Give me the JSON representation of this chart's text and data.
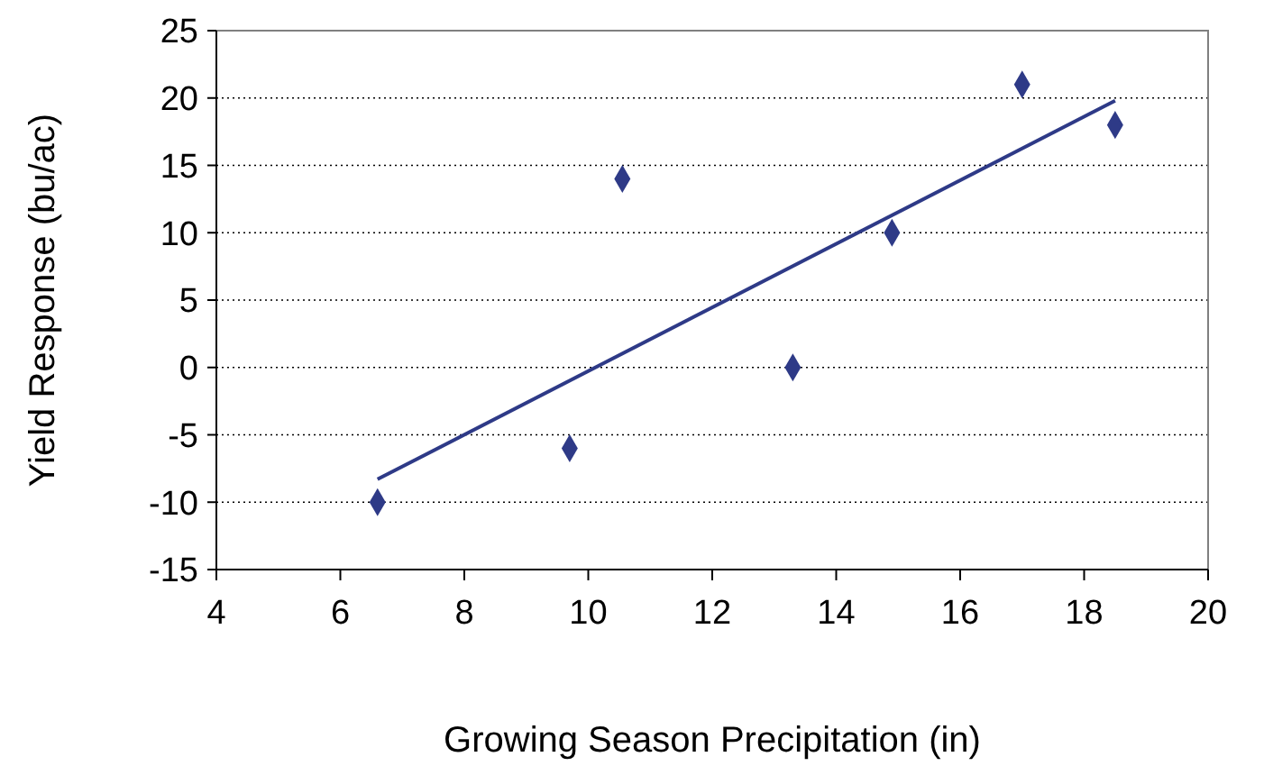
{
  "chart_data": {
    "type": "scatter",
    "xlabel": "Growing Season Precipitation (in)",
    "ylabel": "Yield Response (bu/ac)",
    "xlim": [
      4,
      20
    ],
    "xticks": [
      4,
      6,
      8,
      10,
      12,
      14,
      16,
      18,
      20
    ],
    "ylim": [
      -15,
      25
    ],
    "yticks": [
      -15,
      -10,
      -5,
      0,
      5,
      10,
      15,
      20,
      25
    ],
    "grid": "y",
    "marker": "diamond",
    "series": [
      {
        "color": "#2e3a87",
        "x": [
          6.6,
          9.7,
          10.55,
          13.3,
          14.9,
          17,
          18.5
        ],
        "values": [
          -10,
          -6,
          14,
          0,
          10,
          21,
          18
        ]
      },
      {
        "type": "line",
        "color": "#2e3a87",
        "x": [
          6.6,
          18.5
        ],
        "values": [
          -8.3,
          19.8
        ],
        "line_style": "solid",
        "marker": "none"
      }
    ]
  }
}
